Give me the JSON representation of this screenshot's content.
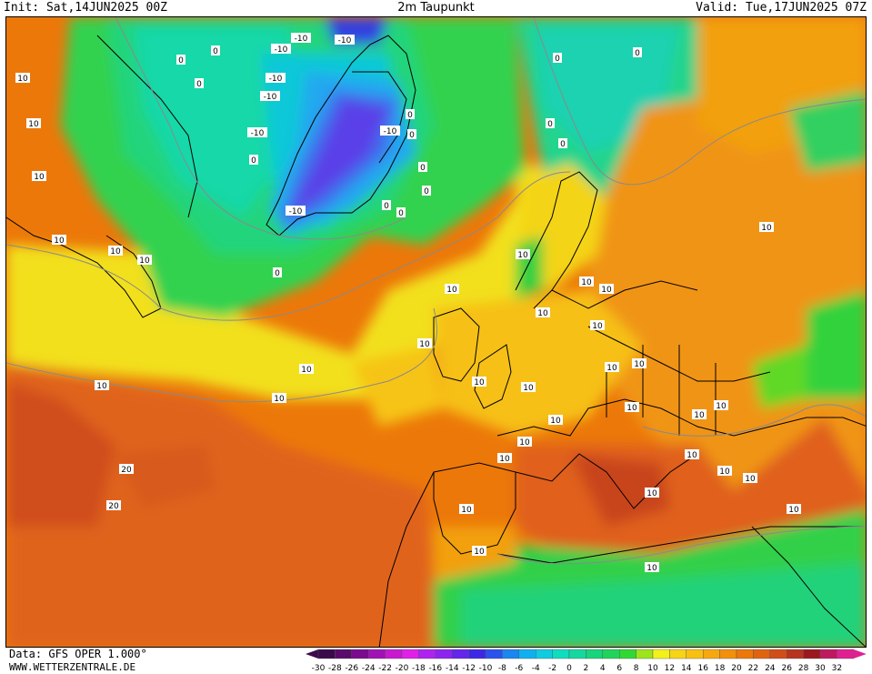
{
  "header": {
    "init": "Init: Sat,14JUN2025 00Z",
    "title": "2m Taupunkt",
    "valid": "Valid: Tue,17JUN2025 07Z"
  },
  "footer": {
    "source": "Data: GFS OPER 1.000°",
    "site": "WWW.WETTERZENTRALE.DE"
  },
  "scale": {
    "labels": [
      "-30",
      "-28",
      "-26",
      "-24",
      "-22",
      "-20",
      "-18",
      "-16",
      "-14",
      "-12",
      "-10",
      "-8",
      "-6",
      "-4",
      "-2",
      "0",
      "2",
      "4",
      "6",
      "8",
      "10",
      "12",
      "14",
      "16",
      "18",
      "20",
      "22",
      "24",
      "26",
      "28",
      "30",
      "32"
    ],
    "colors": [
      "#3a0a4a",
      "#5a0a6a",
      "#7a0a8e",
      "#a012b4",
      "#c818d0",
      "#e020e8",
      "#b022f0",
      "#8c24ee",
      "#6426ea",
      "#3c28e4",
      "#2a52ec",
      "#1a86f0",
      "#10b0f0",
      "#10cce0",
      "#10dcc0",
      "#14d8a0",
      "#18d47c",
      "#20d45a",
      "#30d834",
      "#9ce41c",
      "#f2f21a",
      "#f6d416",
      "#f8c012",
      "#f6a810",
      "#f2900c",
      "#ec780a",
      "#e06410",
      "#d04e1a",
      "#b83420",
      "#9c1820",
      "#c01860",
      "#e02090"
    ]
  },
  "contour_labels": [
    {
      "text": "10"
    },
    {
      "text": "10"
    },
    {
      "text": "10"
    },
    {
      "text": "10"
    },
    {
      "text": "10"
    },
    {
      "text": "10"
    },
    {
      "text": "10"
    },
    {
      "text": "10"
    },
    {
      "text": "10"
    },
    {
      "text": "20"
    },
    {
      "text": "20"
    },
    {
      "text": "-10"
    },
    {
      "text": "-10"
    },
    {
      "text": "-10"
    },
    {
      "text": "-10"
    },
    {
      "text": "-10"
    },
    {
      "text": "-10"
    },
    {
      "text": "-10"
    },
    {
      "text": "-10"
    },
    {
      "text": "0"
    },
    {
      "text": "0"
    },
    {
      "text": "0"
    },
    {
      "text": "0"
    },
    {
      "text": "0"
    },
    {
      "text": "0"
    },
    {
      "text": "0"
    },
    {
      "text": "0"
    },
    {
      "text": "0"
    },
    {
      "text": "0"
    },
    {
      "text": "0"
    },
    {
      "text": "10"
    },
    {
      "text": "10"
    },
    {
      "text": "10"
    },
    {
      "text": "10"
    },
    {
      "text": "10"
    },
    {
      "text": "10"
    },
    {
      "text": "10"
    },
    {
      "text": "10"
    },
    {
      "text": "10"
    },
    {
      "text": "10"
    },
    {
      "text": "10"
    },
    {
      "text": "10"
    },
    {
      "text": "10"
    },
    {
      "text": "10"
    },
    {
      "text": "10"
    },
    {
      "text": "10"
    },
    {
      "text": "10"
    },
    {
      "text": "10"
    },
    {
      "text": "10"
    },
    {
      "text": "10"
    },
    {
      "text": "0"
    },
    {
      "text": "0"
    },
    {
      "text": "0"
    },
    {
      "text": "0"
    },
    {
      "text": "10"
    },
    {
      "text": "10"
    },
    {
      "text": "10"
    },
    {
      "text": "10"
    },
    {
      "text": "10"
    },
    {
      "text": "10"
    }
  ]
}
